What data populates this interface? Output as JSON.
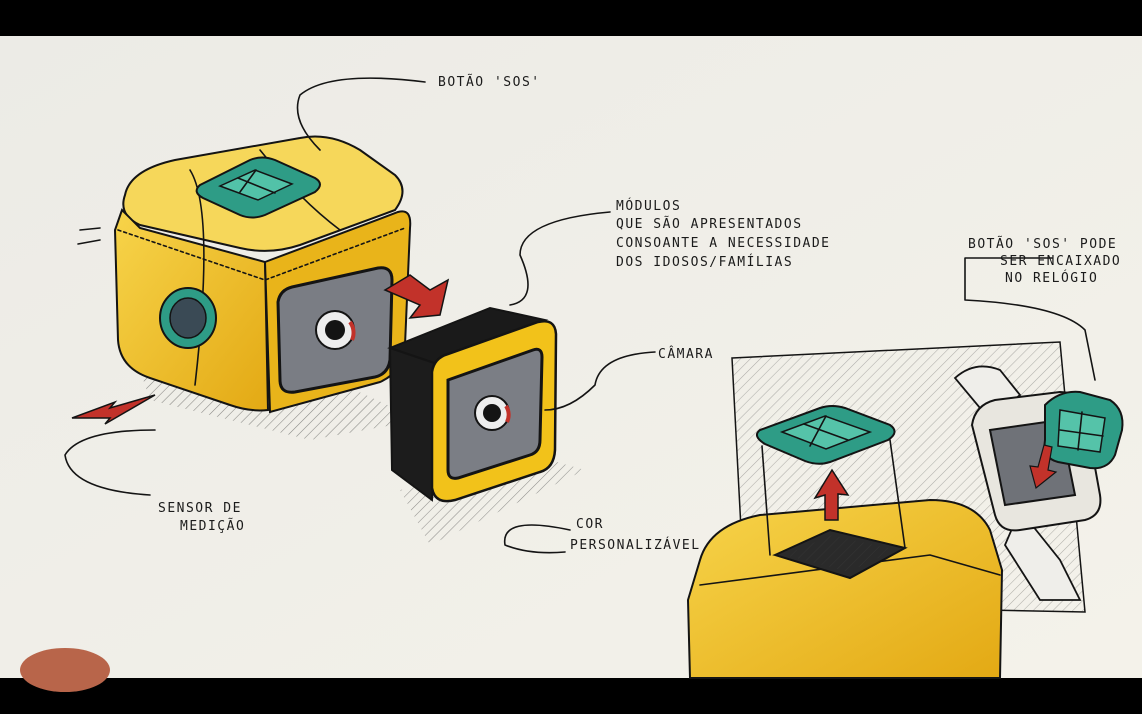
{
  "annotations": {
    "sos_button": "BOTÃO 'SOS'",
    "modules": [
      "MÓDULOS",
      "QUE SÃO APRESENTADOS",
      "CONSOANTE A NECESSIDADE",
      "DOS IDOSOS/FAMÍLIAS"
    ],
    "watch_note": [
      "BOTÃO 'SOS' PODE",
      "SER ENCAIXADO",
      "NO RELÓGIO"
    ],
    "camera": "CÂMARA",
    "sensor": [
      "SENSOR DE",
      "MEDIÇÃO"
    ],
    "color": [
      "COR",
      "PERSONALIZÁVEL"
    ]
  },
  "colors": {
    "paper": "#efede6",
    "yellow": "#f2c21a",
    "teal": "#2e9c86",
    "ink": "#141414",
    "red": "#c2322a"
  }
}
